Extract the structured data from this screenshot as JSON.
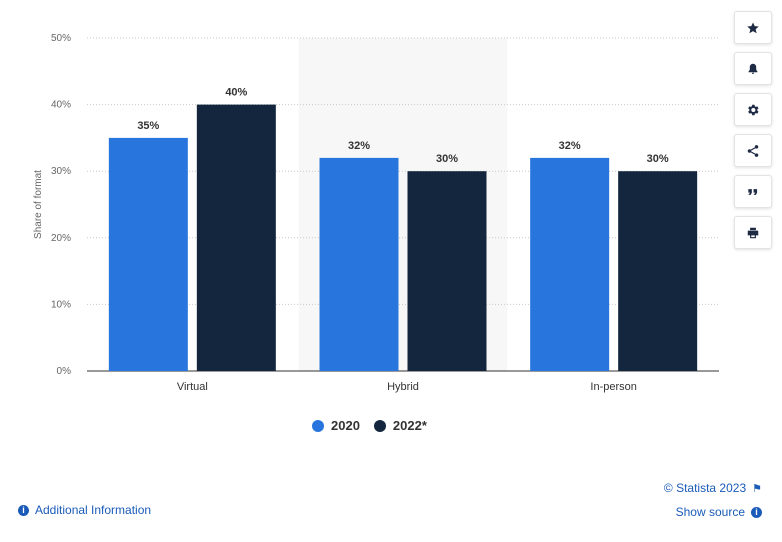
{
  "chart_data": {
    "type": "bar",
    "categories": [
      "Virtual",
      "Hybrid",
      "In-person"
    ],
    "series": [
      {
        "name": "2020",
        "values": [
          35,
          32,
          32
        ],
        "labels": [
          "35%",
          "32%",
          "32%"
        ],
        "color": "#2876dd"
      },
      {
        "name": "2022*",
        "values": [
          40,
          30,
          30
        ],
        "labels": [
          "40%",
          "30%",
          "30%"
        ],
        "color": "#14263e"
      }
    ],
    "ylabel": "Share of format",
    "ylim": [
      0,
      50
    ],
    "yticks": [
      "0%",
      "10%",
      "20%",
      "30%",
      "40%",
      "50%"
    ],
    "grid": true,
    "highlighted_category": "Hybrid",
    "legend_position": "bottom"
  },
  "legend": {
    "items": [
      {
        "label": "2020",
        "color": "#2876dd"
      },
      {
        "label": "2022*",
        "color": "#14263e"
      }
    ]
  },
  "toolbar": {
    "buttons": [
      {
        "icon": "star-icon"
      },
      {
        "icon": "bell-icon"
      },
      {
        "icon": "gear-icon"
      },
      {
        "icon": "share-icon"
      },
      {
        "icon": "quote-icon"
      },
      {
        "icon": "print-icon"
      }
    ]
  },
  "footer": {
    "credit": "© Statista 2023",
    "show_source": "Show source",
    "additional_info": "Additional Information"
  }
}
